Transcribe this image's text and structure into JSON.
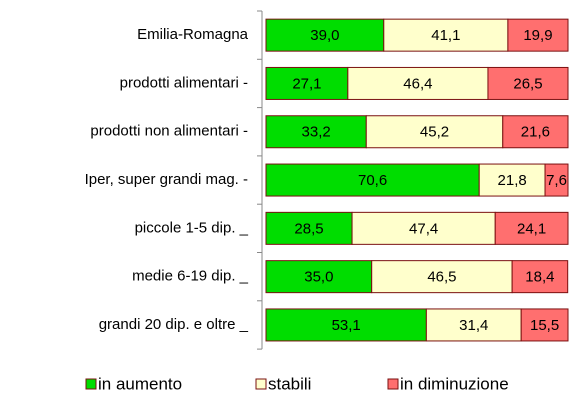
{
  "chart_data": {
    "type": "stacked-barh",
    "categories": [
      "Emilia-Romagna",
      "prodotti alimentari -",
      "prodotti non alimentari -",
      "Iper, super grandi mag. -",
      "piccole 1-5 dip. _",
      "medie 6-19 dip. _",
      "grandi 20 dip. e oltre _"
    ],
    "series": [
      {
        "name": "in aumento",
        "color": "#00dd00",
        "values": [
          39.0,
          27.1,
          33.2,
          70.6,
          28.5,
          35.0,
          53.1
        ],
        "value_labels": [
          "39,0",
          "27,1",
          "33,2",
          "70,6",
          "28,5",
          "35,0",
          "53,1"
        ]
      },
      {
        "name": "stabili",
        "color": "#ffffcc",
        "values": [
          41.1,
          46.4,
          45.2,
          21.8,
          47.4,
          46.5,
          31.4
        ],
        "value_labels": [
          "41,1",
          "46,4",
          "45,2",
          "21,8",
          "47,4",
          "46,5",
          "31,4"
        ]
      },
      {
        "name": "in diminuzione",
        "color": "#ff6f6f",
        "values": [
          19.9,
          26.5,
          21.6,
          7.6,
          24.1,
          18.4,
          15.5
        ],
        "value_labels": [
          "19,9",
          "26,5",
          "21,6",
          "7,6",
          "24,1",
          "18,4",
          "15,5"
        ]
      }
    ],
    "xlim": [
      0,
      100
    ],
    "legend": "bottom"
  }
}
